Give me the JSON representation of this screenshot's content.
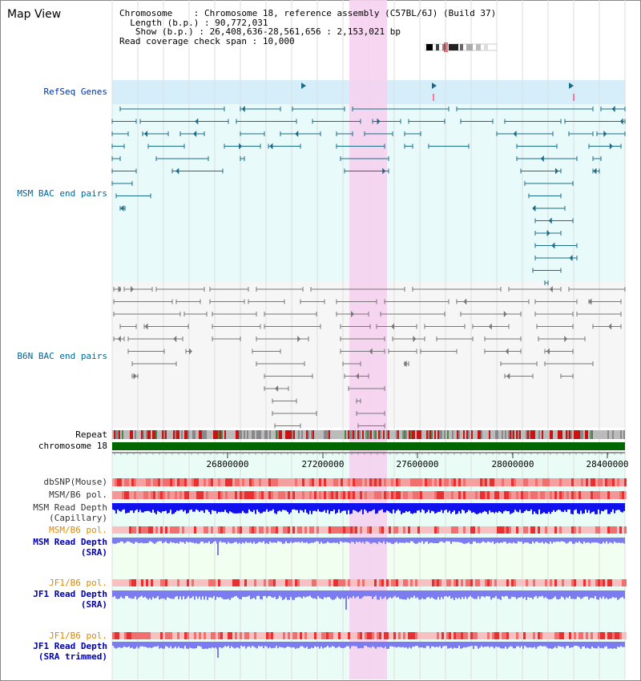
{
  "page": {
    "title": "Map View"
  },
  "info": {
    "chromosome_key": "Chromosome",
    "chromosome_val": "Chromosome 18, reference assembly (C57BL/6J) (Build 37)",
    "length_key": "Length (b.p.)",
    "length_val": "90,772,031",
    "show_key": "Show (b.p.)",
    "show_val": "26,408,636-28,561,656 : 2,153,021 bp",
    "coverage_key": "Read coverage check span",
    "coverage_val": "10,000"
  },
  "tracks": {
    "refseq": "RefSeq Genes",
    "msm_bac": "MSM BAC end pairs",
    "b6n_bac": "B6N BAC end pairs",
    "repeat": "Repeat",
    "chrom": "chromosome 18",
    "dbsnp": "dbSNP(Mouse)",
    "msm_pol1": "MSM/B6 pol.",
    "msm_rd_cap_1": "MSM Read Depth",
    "msm_rd_cap_2": "(Capillary)",
    "msm_pol2": "MSM/B6 pol.",
    "msm_rd_sra_1": "MSM Read Depth",
    "msm_rd_sra_2": "(SRA)",
    "jf1_pol1": "JF1/B6 pol.",
    "jf1_rd_sra_1": "JF1 Read Depth",
    "jf1_rd_sra_2": "(SRA)",
    "jf1_pol2": "JF1/B6 pol.",
    "jf1_rd_trim_1": "JF1 Read Depth",
    "jf1_rd_trim_2": "(SRA trimmed)"
  },
  "axis": {
    "ticks": [
      "26800000",
      "27200000",
      "27600000",
      "28000000",
      "28400000"
    ]
  },
  "colors": {
    "refseq_feature": "#1a6c8a",
    "refseq_bg": "#d5eefa",
    "panel_bg": "#e8fafa",
    "highlight": "#f5d2f0",
    "bac_gray": "#777777",
    "chrom_green": "#006600",
    "rd_blue": "#1111ee",
    "rd_light": "#7c7cf0",
    "pol_red": "#ee4444",
    "label_blue": "#0000aa",
    "label_orange": "#dd8800",
    "refseq_label": "#003399",
    "msm_label": "#006699"
  }
}
